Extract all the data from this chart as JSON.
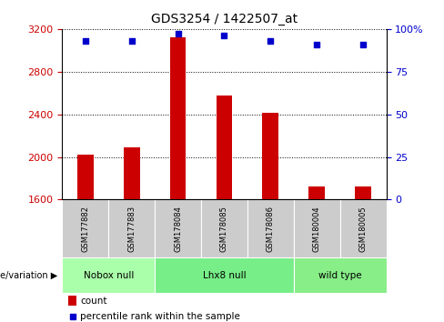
{
  "title": "GDS3254 / 1422507_at",
  "samples": [
    "GSM177882",
    "GSM177883",
    "GSM178084",
    "GSM178085",
    "GSM178086",
    "GSM180004",
    "GSM180005"
  ],
  "counts": [
    2020,
    2090,
    3120,
    2580,
    2410,
    1720,
    1720
  ],
  "percentiles": [
    93,
    93,
    97,
    96,
    93,
    91,
    91
  ],
  "y_min": 1600,
  "y_max": 3200,
  "y_ticks": [
    1600,
    2000,
    2400,
    2800,
    3200
  ],
  "y2_ticks": [
    0,
    25,
    50,
    75,
    100
  ],
  "bar_color": "#cc0000",
  "dot_color": "#0000cc",
  "groups": [
    {
      "label": "Nobox null",
      "start": 0,
      "end": 2,
      "color": "#aaffaa"
    },
    {
      "label": "Lhx8 null",
      "start": 2,
      "end": 5,
      "color": "#77ee88"
    },
    {
      "label": "wild type",
      "start": 5,
      "end": 7,
      "color": "#88ee88"
    }
  ],
  "xlabel_genotype": "genotype/variation",
  "legend_count_label": "count",
  "legend_pct_label": "percentile rank within the sample",
  "bg_color": "#ffffff",
  "bar_width": 0.35,
  "figsize": [
    4.88,
    3.54
  ],
  "dpi": 100
}
